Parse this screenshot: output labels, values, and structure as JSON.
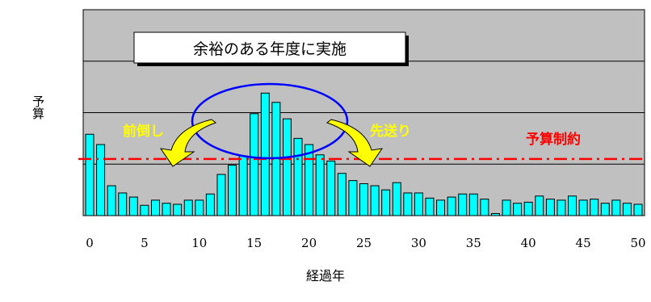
{
  "chart_data": {
    "type": "bar",
    "ylabel": "予算",
    "xlabel": "経過年",
    "x": [
      0,
      1,
      2,
      3,
      4,
      5,
      6,
      7,
      8,
      9,
      10,
      11,
      12,
      13,
      14,
      15,
      16,
      17,
      18,
      19,
      20,
      21,
      22,
      23,
      24,
      25,
      26,
      27,
      28,
      29,
      30,
      31,
      32,
      33,
      34,
      35,
      36,
      37,
      38,
      39,
      40,
      41,
      42,
      43,
      44,
      45,
      46,
      47,
      48,
      49,
      50
    ],
    "values": [
      7.9,
      6.9,
      2.9,
      2.2,
      1.8,
      1.0,
      1.5,
      1.2,
      1.1,
      1.5,
      1.5,
      2.1,
      4.0,
      4.9,
      5.8,
      9.9,
      11.9,
      11.0,
      9.4,
      7.5,
      6.9,
      5.9,
      5.3,
      4.1,
      3.4,
      3.1,
      2.9,
      2.5,
      3.2,
      2.2,
      2.2,
      1.7,
      1.5,
      1.8,
      2.1,
      2.1,
      1.6,
      0.2,
      1.5,
      1.2,
      1.3,
      1.9,
      1.6,
      1.5,
      1.9,
      1.5,
      1.6,
      1.2,
      1.5,
      1.2,
      1.1
    ],
    "xlim": [
      0,
      50
    ],
    "xticks": [
      "0",
      "5",
      "10",
      "15",
      "20",
      "25",
      "30",
      "35",
      "40",
      "45",
      "50"
    ],
    "ylim": [
      0,
      20
    ],
    "yticks": [
      0,
      5,
      10,
      15,
      20
    ],
    "budget_limit": 5.5,
    "grid": "horizontal",
    "annotations": {
      "box": "余裕のある年度に実施",
      "left_arrow": "前倒し",
      "right_arrow": "先送り",
      "limit_line": "予算制約"
    },
    "colors": {
      "plot_bg": "#c0c0c0",
      "bar": "#00ffff",
      "ellipse": "#0000ff",
      "arrow": "#ffff00",
      "limit_line": "#ff0000",
      "grid": "#000000"
    }
  }
}
